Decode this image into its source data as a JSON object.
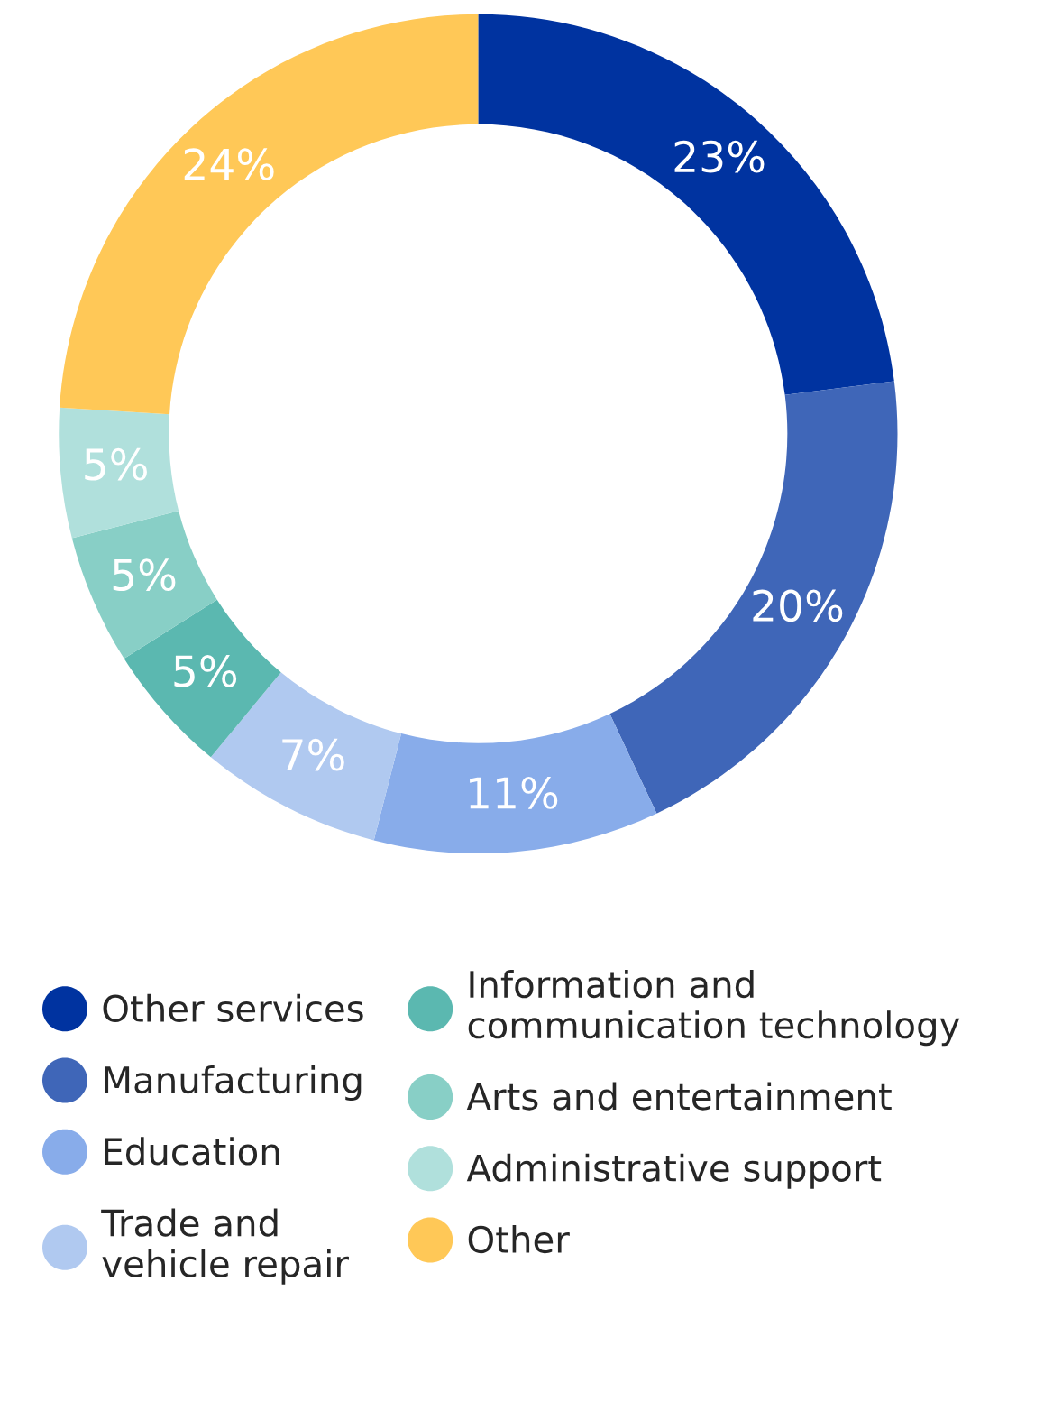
{
  "chart_data": {
    "type": "donut",
    "categories": [
      "Other services",
      "Manufacturing",
      "Education",
      "Trade and\nvehicle repair",
      "Information and\ncommunication technology",
      "Arts and entertainment",
      "Administrative support",
      "Other"
    ],
    "values": [
      23,
      20,
      11,
      7,
      5,
      5,
      5,
      24
    ],
    "value_labels": [
      "23%",
      "20%",
      "11%",
      "7%",
      "5%",
      "5%",
      "5%",
      "24%"
    ],
    "colors": [
      "#0033a0",
      "#3f66b8",
      "#88acea",
      "#b0c9f0",
      "#5bb8b0",
      "#88cfc6",
      "#b0e0dc",
      "#ffc857"
    ],
    "legend": "bottom"
  }
}
